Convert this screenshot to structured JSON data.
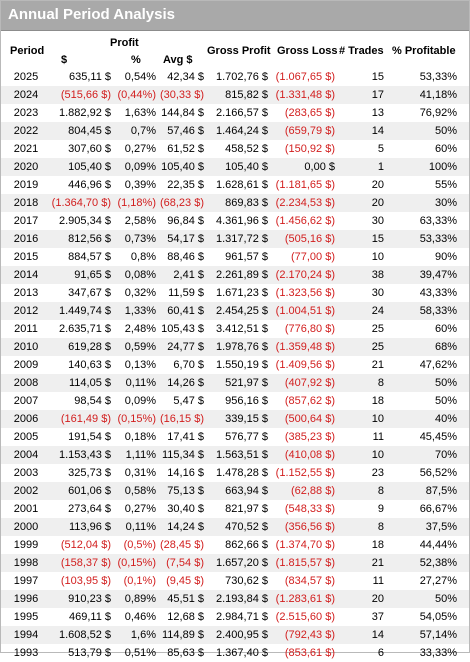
{
  "title": "Annual Period Analysis",
  "headers": {
    "period": "Period",
    "profit": "Profit",
    "dollar": "$",
    "percent": "%",
    "avg": "Avg $",
    "gross_profit": "Gross Profit",
    "gross_loss": "Gross Loss",
    "trades": "# Trades",
    "pct_profitable": "% Profitable"
  },
  "rows": [
    {
      "year": "2025",
      "profit": "635,11 $",
      "pct": "0,54%",
      "avg": "42,34 $",
      "gp": "1.702,76 $",
      "gl": "(1.067,65 $)",
      "trades": "15",
      "pp": "53,33%"
    },
    {
      "year": "2024",
      "profit": "(515,66 $)",
      "pct": "(0,44%)",
      "avg": "(30,33 $)",
      "gp": "815,82 $",
      "gl": "(1.331,48 $)",
      "trades": "17",
      "pp": "41,18%"
    },
    {
      "year": "2023",
      "profit": "1.882,92 $",
      "pct": "1,63%",
      "avg": "144,84 $",
      "gp": "2.166,57 $",
      "gl": "(283,65 $)",
      "trades": "13",
      "pp": "76,92%"
    },
    {
      "year": "2022",
      "profit": "804,45 $",
      "pct": "0,7%",
      "avg": "57,46 $",
      "gp": "1.464,24 $",
      "gl": "(659,79 $)",
      "trades": "14",
      "pp": "50%"
    },
    {
      "year": "2021",
      "profit": "307,60 $",
      "pct": "0,27%",
      "avg": "61,52 $",
      "gp": "458,52 $",
      "gl": "(150,92 $)",
      "trades": "5",
      "pp": "60%"
    },
    {
      "year": "2020",
      "profit": "105,40 $",
      "pct": "0,09%",
      "avg": "105,40 $",
      "gp": "105,40 $",
      "gl": "0,00 $",
      "trades": "1",
      "pp": "100%"
    },
    {
      "year": "2019",
      "profit": "446,96 $",
      "pct": "0,39%",
      "avg": "22,35 $",
      "gp": "1.628,61 $",
      "gl": "(1.181,65 $)",
      "trades": "20",
      "pp": "55%"
    },
    {
      "year": "2018",
      "profit": "(1.364,70 $)",
      "pct": "(1,18%)",
      "avg": "(68,23 $)",
      "gp": "869,83 $",
      "gl": "(2.234,53 $)",
      "trades": "20",
      "pp": "30%"
    },
    {
      "year": "2017",
      "profit": "2.905,34 $",
      "pct": "2,58%",
      "avg": "96,84 $",
      "gp": "4.361,96 $",
      "gl": "(1.456,62 $)",
      "trades": "30",
      "pp": "63,33%"
    },
    {
      "year": "2016",
      "profit": "812,56 $",
      "pct": "0,73%",
      "avg": "54,17 $",
      "gp": "1.317,72 $",
      "gl": "(505,16 $)",
      "trades": "15",
      "pp": "53,33%"
    },
    {
      "year": "2015",
      "profit": "884,57 $",
      "pct": "0,8%",
      "avg": "88,46 $",
      "gp": "961,57 $",
      "gl": "(77,00 $)",
      "trades": "10",
      "pp": "90%"
    },
    {
      "year": "2014",
      "profit": "91,65 $",
      "pct": "0,08%",
      "avg": "2,41 $",
      "gp": "2.261,89 $",
      "gl": "(2.170,24 $)",
      "trades": "38",
      "pp": "39,47%"
    },
    {
      "year": "2013",
      "profit": "347,67 $",
      "pct": "0,32%",
      "avg": "11,59 $",
      "gp": "1.671,23 $",
      "gl": "(1.323,56 $)",
      "trades": "30",
      "pp": "43,33%"
    },
    {
      "year": "2012",
      "profit": "1.449,74 $",
      "pct": "1,33%",
      "avg": "60,41 $",
      "gp": "2.454,25 $",
      "gl": "(1.004,51 $)",
      "trades": "24",
      "pp": "58,33%"
    },
    {
      "year": "2011",
      "profit": "2.635,71 $",
      "pct": "2,48%",
      "avg": "105,43 $",
      "gp": "3.412,51 $",
      "gl": "(776,80 $)",
      "trades": "25",
      "pp": "60%"
    },
    {
      "year": "2010",
      "profit": "619,28 $",
      "pct": "0,59%",
      "avg": "24,77 $",
      "gp": "1.978,76 $",
      "gl": "(1.359,48 $)",
      "trades": "25",
      "pp": "68%"
    },
    {
      "year": "2009",
      "profit": "140,63 $",
      "pct": "0,13%",
      "avg": "6,70 $",
      "gp": "1.550,19 $",
      "gl": "(1.409,56 $)",
      "trades": "21",
      "pp": "47,62%"
    },
    {
      "year": "2008",
      "profit": "114,05 $",
      "pct": "0,11%",
      "avg": "14,26 $",
      "gp": "521,97 $",
      "gl": "(407,92 $)",
      "trades": "8",
      "pp": "50%"
    },
    {
      "year": "2007",
      "profit": "98,54 $",
      "pct": "0,09%",
      "avg": "5,47 $",
      "gp": "956,16 $",
      "gl": "(857,62 $)",
      "trades": "18",
      "pp": "50%"
    },
    {
      "year": "2006",
      "profit": "(161,49 $)",
      "pct": "(0,15%)",
      "avg": "(16,15 $)",
      "gp": "339,15 $",
      "gl": "(500,64 $)",
      "trades": "10",
      "pp": "40%"
    },
    {
      "year": "2005",
      "profit": "191,54 $",
      "pct": "0,18%",
      "avg": "17,41 $",
      "gp": "576,77 $",
      "gl": "(385,23 $)",
      "trades": "11",
      "pp": "45,45%"
    },
    {
      "year": "2004",
      "profit": "1.153,43 $",
      "pct": "1,11%",
      "avg": "115,34 $",
      "gp": "1.563,51 $",
      "gl": "(410,08 $)",
      "trades": "10",
      "pp": "70%"
    },
    {
      "year": "2003",
      "profit": "325,73 $",
      "pct": "0,31%",
      "avg": "14,16 $",
      "gp": "1.478,28 $",
      "gl": "(1.152,55 $)",
      "trades": "23",
      "pp": "56,52%"
    },
    {
      "year": "2002",
      "profit": "601,06 $",
      "pct": "0,58%",
      "avg": "75,13 $",
      "gp": "663,94 $",
      "gl": "(62,88 $)",
      "trades": "8",
      "pp": "87,5%"
    },
    {
      "year": "2001",
      "profit": "273,64 $",
      "pct": "0,27%",
      "avg": "30,40 $",
      "gp": "821,97 $",
      "gl": "(548,33 $)",
      "trades": "9",
      "pp": "66,67%"
    },
    {
      "year": "2000",
      "profit": "113,96 $",
      "pct": "0,11%",
      "avg": "14,24 $",
      "gp": "470,52 $",
      "gl": "(356,56 $)",
      "trades": "8",
      "pp": "37,5%"
    },
    {
      "year": "1999",
      "profit": "(512,04 $)",
      "pct": "(0,5%)",
      "avg": "(28,45 $)",
      "gp": "862,66 $",
      "gl": "(1.374,70 $)",
      "trades": "18",
      "pp": "44,44%"
    },
    {
      "year": "1998",
      "profit": "(158,37 $)",
      "pct": "(0,15%)",
      "avg": "(7,54 $)",
      "gp": "1.657,20 $",
      "gl": "(1.815,57 $)",
      "trades": "21",
      "pp": "52,38%"
    },
    {
      "year": "1997",
      "profit": "(103,95 $)",
      "pct": "(0,1%)",
      "avg": "(9,45 $)",
      "gp": "730,62 $",
      "gl": "(834,57 $)",
      "trades": "11",
      "pp": "27,27%"
    },
    {
      "year": "1996",
      "profit": "910,23 $",
      "pct": "0,89%",
      "avg": "45,51 $",
      "gp": "2.193,84 $",
      "gl": "(1.283,61 $)",
      "trades": "20",
      "pp": "50%"
    },
    {
      "year": "1995",
      "profit": "469,11 $",
      "pct": "0,46%",
      "avg": "12,68 $",
      "gp": "2.984,71 $",
      "gl": "(2.515,60 $)",
      "trades": "37",
      "pp": "54,05%"
    },
    {
      "year": "1994",
      "profit": "1.608,52 $",
      "pct": "1,6%",
      "avg": "114,89 $",
      "gp": "2.400,95 $",
      "gl": "(792,43 $)",
      "trades": "14",
      "pp": "57,14%"
    },
    {
      "year": "1993",
      "profit": "513,79 $",
      "pct": "0,51%",
      "avg": "85,63 $",
      "gp": "1.367,40 $",
      "gl": "(853,61 $)",
      "trades": "6",
      "pp": "33,33%"
    }
  ],
  "colors": {
    "negative": "#d21e1e",
    "titlebar": "#a9a9a9",
    "alt_row": "#efefef"
  }
}
